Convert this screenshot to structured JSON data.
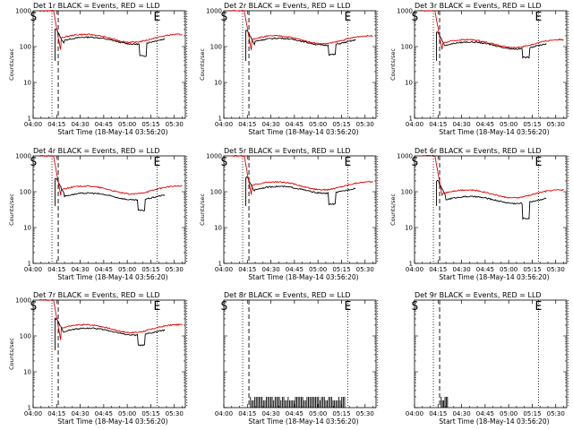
{
  "chart_data": [
    {
      "type": "line",
      "title": "Det 1r BLACK = Events, RED = LLD",
      "xlabel": "Start Time (18-May-14 03:56:20)",
      "ylabel": "Counts/sec",
      "ylim": [
        1,
        1000
      ],
      "yscale": "log",
      "xticks": [
        "04:00",
        "04:15",
        "04:30",
        "04:45",
        "05:00",
        "05:15",
        "05:30"
      ],
      "yticks": [
        "1",
        "10",
        "100",
        "1000"
      ],
      "markers": [
        {
          "label": "S",
          "x": "03:58"
        },
        {
          "label": "E",
          "x": "05:19"
        }
      ],
      "vlines_dotted": [
        "04:12",
        "05:19",
        "05:38"
      ],
      "vline_dashed": "04:16",
      "series": [
        {
          "name": "Events",
          "color": "#000000",
          "kind": "normal",
          "peak": 300,
          "level": 150,
          "dip_at": "05:08",
          "dip_to": 55
        },
        {
          "name": "LLD",
          "color": "#e00000",
          "kind": "normal",
          "peak": 1000,
          "level": 175
        }
      ]
    },
    {
      "type": "line",
      "title": "Det 2r BLACK = Events, RED = LLD",
      "xlabel": "Start Time (18-May-14 03:56:20)",
      "ylabel": "Counts/sec",
      "ylim": [
        1,
        1000
      ],
      "yscale": "log",
      "xticks": [
        "04:00",
        "04:15",
        "04:30",
        "04:45",
        "05:00",
        "05:15",
        "05:30"
      ],
      "yticks": [
        "1",
        "10",
        "100",
        "1000"
      ],
      "markers": [
        {
          "label": "S",
          "x": "03:58"
        },
        {
          "label": "E",
          "x": "05:19"
        }
      ],
      "vlines_dotted": [
        "04:12",
        "05:19",
        "05:38"
      ],
      "vline_dashed": "04:16",
      "series": [
        {
          "name": "Events",
          "color": "#000000",
          "kind": "normal",
          "peak": 280,
          "level": 140,
          "dip_at": "05:07",
          "dip_to": 60
        },
        {
          "name": "LLD",
          "color": "#e00000",
          "kind": "normal",
          "peak": 1000,
          "level": 160
        }
      ]
    },
    {
      "type": "line",
      "title": "Det 3r BLACK = Events, RED = LLD",
      "xlabel": "Start Time (18-May-14 03:56:20)",
      "ylabel": "Counts/sec",
      "ylim": [
        1,
        1000
      ],
      "yscale": "log",
      "xticks": [
        "04:00",
        "04:15",
        "04:30",
        "04:45",
        "05:00",
        "05:15",
        "05:30"
      ],
      "yticks": [
        "1",
        "10",
        "100",
        "1000"
      ],
      "markers": [
        {
          "label": "S",
          "x": "03:58"
        },
        {
          "label": "E",
          "x": "05:19"
        }
      ],
      "vlines_dotted": [
        "04:12",
        "05:19",
        "05:38"
      ],
      "vline_dashed": "04:16",
      "series": [
        {
          "name": "Events",
          "color": "#000000",
          "kind": "normal",
          "peak": 250,
          "level": 110,
          "dip_at": "05:09",
          "dip_to": 50
        },
        {
          "name": "LLD",
          "color": "#e00000",
          "kind": "normal",
          "peak": 1000,
          "level": 125
        }
      ]
    },
    {
      "type": "line",
      "title": "Det 4r BLACK = Events, RED = LLD",
      "xlabel": "Start Time (18-May-14 03:56:20)",
      "ylabel": "Counts/sec",
      "ylim": [
        1,
        1000
      ],
      "yscale": "log",
      "xticks": [
        "04:00",
        "04:15",
        "04:30",
        "04:45",
        "05:00",
        "05:15",
        "05:30"
      ],
      "yticks": [
        "1",
        "10",
        "100",
        "1000"
      ],
      "markers": [
        {
          "label": "S",
          "x": "03:58"
        },
        {
          "label": "E",
          "x": "05:19"
        }
      ],
      "vlines_dotted": [
        "04:12",
        "05:19",
        "05:38"
      ],
      "vline_dashed": "04:16",
      "series": [
        {
          "name": "Events",
          "color": "#000000",
          "kind": "normal",
          "peak": 230,
          "level": 75,
          "dip_at": "05:07",
          "dip_to": 30
        },
        {
          "name": "LLD",
          "color": "#e00000",
          "kind": "normal",
          "peak": 1000,
          "level": 115
        }
      ]
    },
    {
      "type": "line",
      "title": "Det 5r BLACK = Events, RED = LLD",
      "xlabel": "Start Time (18-May-14 03:56:20)",
      "ylabel": "Counts/sec",
      "ylim": [
        1,
        1000
      ],
      "yscale": "log",
      "xticks": [
        "04:00",
        "04:15",
        "04:30",
        "04:45",
        "05:00",
        "05:15",
        "05:30"
      ],
      "yticks": [
        "1",
        "10",
        "100",
        "1000"
      ],
      "markers": [
        {
          "label": "S",
          "x": "03:58"
        },
        {
          "label": "E",
          "x": "05:19"
        }
      ],
      "vlines_dotted": [
        "04:12",
        "05:19",
        "05:38"
      ],
      "vline_dashed": "04:16",
      "series": [
        {
          "name": "Events",
          "color": "#000000",
          "kind": "normal",
          "peak": 250,
          "level": 115,
          "dip_at": "05:07",
          "dip_to": 45
        },
        {
          "name": "LLD",
          "color": "#e00000",
          "kind": "normal",
          "peak": 1000,
          "level": 150
        }
      ]
    },
    {
      "type": "line",
      "title": "Det 6r BLACK = Events, RED = LLD",
      "xlabel": "Start Time (18-May-14 03:56:20)",
      "ylabel": "Counts/sec",
      "ylim": [
        1,
        1000
      ],
      "yscale": "log",
      "xticks": [
        "04:00",
        "04:15",
        "04:30",
        "04:45",
        "05:00",
        "05:15",
        "05:30"
      ],
      "yticks": [
        "1",
        "10",
        "100",
        "1000"
      ],
      "markers": [
        {
          "label": "S",
          "x": "03:58"
        },
        {
          "label": "E",
          "x": "05:19"
        }
      ],
      "vlines_dotted": [
        "04:12",
        "05:19",
        "05:38"
      ],
      "vline_dashed": "04:16",
      "series": [
        {
          "name": "Events",
          "color": "#000000",
          "kind": "normal",
          "peak": 200,
          "level": 60,
          "dip_at": "05:09",
          "dip_to": 18
        },
        {
          "name": "LLD",
          "color": "#e00000",
          "kind": "normal",
          "peak": 1000,
          "level": 90
        }
      ]
    },
    {
      "type": "line",
      "title": "Det 7r BLACK = Events, RED = LLD",
      "xlabel": "Start Time (18-May-14 03:56:20)",
      "ylabel": "Counts/sec",
      "ylim": [
        1,
        1000
      ],
      "yscale": "log",
      "xticks": [
        "04:00",
        "04:15",
        "04:30",
        "04:45",
        "05:00",
        "05:15",
        "05:30"
      ],
      "yticks": [
        "1",
        "10",
        "100",
        "1000"
      ],
      "markers": [
        {
          "label": "S",
          "x": "03:58"
        },
        {
          "label": "E",
          "x": "05:19"
        }
      ],
      "vlines_dotted": [
        "04:12",
        "05:19",
        "05:38"
      ],
      "vline_dashed": "04:16",
      "series": [
        {
          "name": "Events",
          "color": "#000000",
          "kind": "normal",
          "peak": 300,
          "level": 135,
          "dip_at": "05:07",
          "dip_to": 55
        },
        {
          "name": "LLD",
          "color": "#e00000",
          "kind": "normal",
          "peak": 1000,
          "level": 165
        }
      ]
    },
    {
      "type": "line",
      "title": "Det 8r BLACK = Events, RED = LLD",
      "xlabel": "Start Time (18-May-14 03:56:20)",
      "ylabel": "",
      "ylim": [
        1,
        1000
      ],
      "yscale": "log",
      "xticks": [
        "04:00",
        "04:15",
        "04:30",
        "04:45",
        "05:00",
        "05:15",
        "05:30"
      ],
      "yticks": [],
      "markers": [
        {
          "label": "S",
          "x": "03:58"
        },
        {
          "label": "E",
          "x": "05:19"
        }
      ],
      "vlines_dotted": [
        "04:12",
        "05:19",
        "05:38"
      ],
      "vline_dashed": "04:16",
      "series": [
        {
          "name": "Events",
          "color": "#000000",
          "kind": "spikes",
          "range": [
            "04:17",
            "05:17"
          ],
          "spike_high": 2
        }
      ]
    },
    {
      "type": "line",
      "title": "Det 9r BLACK = Events, RED = LLD",
      "xlabel": "Start Time (18-May-14 03:56:20)",
      "ylabel": "",
      "ylim": [
        1,
        1000
      ],
      "yscale": "log",
      "xticks": [
        "04:00",
        "04:15",
        "04:30",
        "04:45",
        "05:00",
        "05:15",
        "05:30"
      ],
      "yticks": [],
      "markers": [
        {
          "label": "S",
          "x": "03:58"
        },
        {
          "label": "E",
          "x": "05:19"
        }
      ],
      "vlines_dotted": [
        "04:12",
        "05:19",
        "05:38"
      ],
      "vline_dashed": "04:16",
      "series": [
        {
          "name": "Events",
          "color": "#000000",
          "kind": "spikes",
          "range": [
            "04:17",
            "04:21"
          ],
          "spike_high": 2
        }
      ]
    }
  ]
}
